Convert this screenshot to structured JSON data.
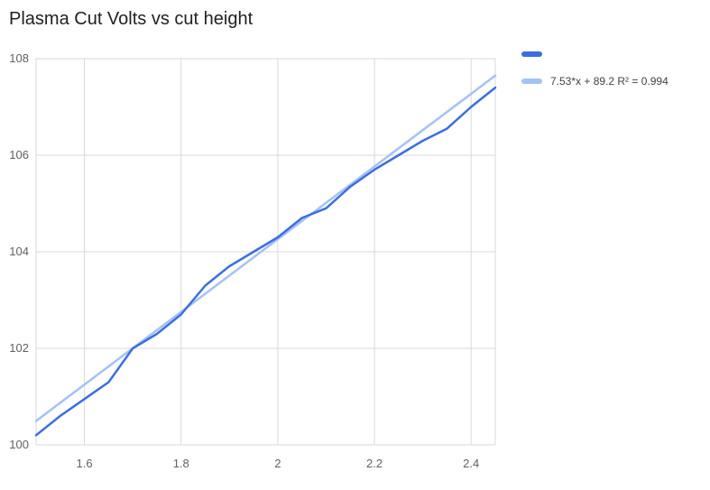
{
  "title": "Plasma Cut Volts vs cut height",
  "colors": {
    "series": "#3b6fe0",
    "trendline": "#a4c2f4",
    "grid": "#d9d9d9",
    "tick_text": "#616161",
    "legend_text": "#424242",
    "title_text": "#212121",
    "background": "#ffffff"
  },
  "legend": {
    "items": [
      {
        "label": "",
        "color": "#3b6fe0"
      },
      {
        "label": "7.53*x + 89.2 R² = 0.994",
        "color": "#a4c2f4"
      }
    ]
  },
  "chart_data": {
    "type": "line",
    "title": "Plasma Cut Volts vs cut height",
    "xlabel": "",
    "ylabel": "",
    "xlim": [
      1.5,
      2.45
    ],
    "ylim": [
      100,
      108
    ],
    "x_ticks": [
      1.6,
      1.8,
      2,
      2.2,
      2.4
    ],
    "x_tick_labels": [
      "1.6",
      "1.8",
      "2",
      "2.2",
      "2.4"
    ],
    "y_ticks": [
      100,
      102,
      104,
      106,
      108
    ],
    "y_tick_labels": [
      "100",
      "102",
      "104",
      "106",
      "108"
    ],
    "grid": true,
    "legend_position": "top-right",
    "series": [
      {
        "name": "",
        "type": "line",
        "color": "#3b6fe0",
        "x": [
          1.5,
          1.55,
          1.6,
          1.65,
          1.7,
          1.75,
          1.8,
          1.85,
          1.9,
          1.95,
          2.0,
          2.05,
          2.1,
          2.15,
          2.2,
          2.25,
          2.3,
          2.35,
          2.4,
          2.45
        ],
        "y": [
          100.2,
          100.6,
          100.95,
          101.3,
          102.0,
          102.3,
          102.7,
          103.3,
          103.7,
          104.0,
          104.3,
          104.7,
          104.9,
          105.35,
          105.7,
          106.0,
          106.3,
          106.55,
          107.0,
          107.4
        ]
      },
      {
        "name": "7.53*x + 89.2 R² = 0.994",
        "type": "trendline",
        "color": "#a4c2f4",
        "equation": {
          "slope": 7.53,
          "intercept": 89.2,
          "r2": 0.994
        },
        "x": [
          1.5,
          2.45
        ],
        "y": [
          100.495,
          107.6485
        ]
      }
    ]
  }
}
